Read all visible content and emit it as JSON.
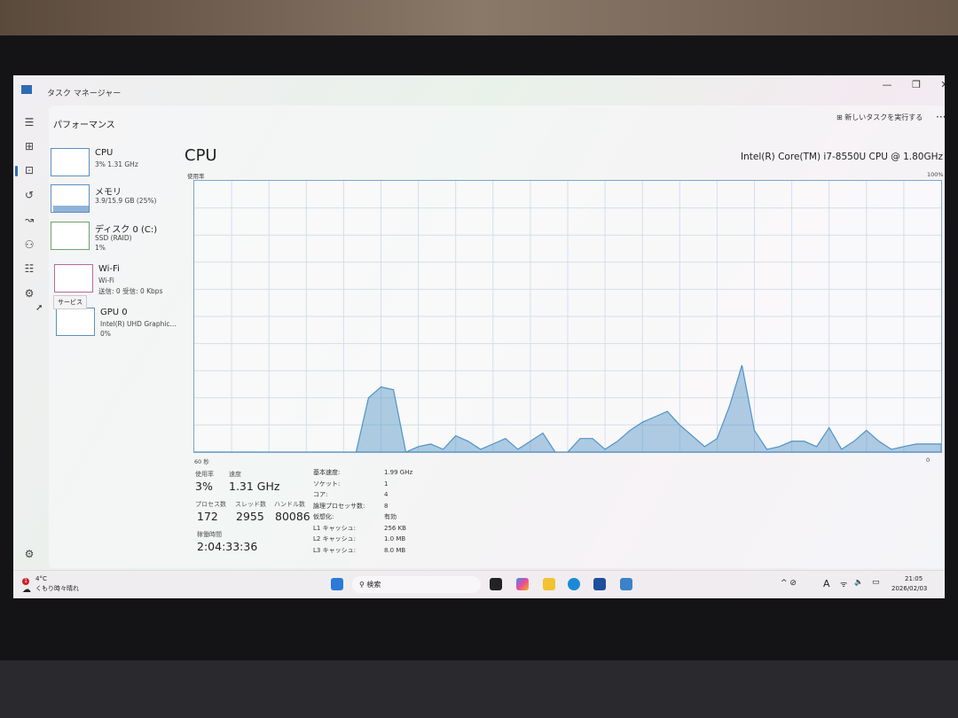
{
  "window": {
    "title": "タスク マネージャー",
    "minimize": "—",
    "restore": "❐",
    "close": "✕"
  },
  "rail": [
    {
      "icon": "hamburger-icon",
      "glyph": "☰"
    },
    {
      "icon": "processes-icon",
      "glyph": "⊞"
    },
    {
      "icon": "performance-icon",
      "glyph": "⊡"
    },
    {
      "icon": "app-history-icon",
      "glyph": "↺"
    },
    {
      "icon": "startup-apps-icon",
      "glyph": "↝"
    },
    {
      "icon": "users-icon",
      "glyph": "⚇"
    },
    {
      "icon": "details-icon",
      "glyph": "☷"
    },
    {
      "icon": "services-icon",
      "glyph": "⚙"
    }
  ],
  "settings_glyph": "⚙",
  "tooltip": "サービス",
  "header": {
    "title": "パフォーマンス",
    "new_task": "新しいタスクを実行する",
    "more": "···"
  },
  "devices": [
    {
      "name": "CPU",
      "line1": "3% 1.31 GHz",
      "line2": ""
    },
    {
      "name": "メモリ",
      "line1": "3.9/15.9 GB (25%)",
      "line2": "",
      "fill": 0.25
    },
    {
      "name": "ディスク 0 (C:)",
      "line1": "SSD (RAID)",
      "line2": "1%"
    },
    {
      "name": "Wi-Fi",
      "line1": "Wi-Fi",
      "line2": "送信: 0 受信: 0 Kbps"
    },
    {
      "name": "GPU 0",
      "line1": "Intel(R) UHD Graphic...",
      "line2": "0%"
    }
  ],
  "main": {
    "title": "CPU",
    "model": "Intel(R) Core(TM) i7-8550U CPU @ 1.80GHz",
    "y_label": "使用率",
    "y_max": "100%",
    "x_left": "60 秒",
    "x_right": "0"
  },
  "stats": {
    "usage_label": "使用率",
    "usage": "3%",
    "speed_label": "速度",
    "speed": "1.31 GHz",
    "processes_label": "プロセス数",
    "processes": "172",
    "threads_label": "スレッド数",
    "threads": "2955",
    "handles_label": "ハンドル数",
    "handles": "80086",
    "uptime_label": "稼働時間",
    "uptime": "2:04:33:36",
    "details": [
      [
        "基本速度:",
        "1.99 GHz"
      ],
      [
        "ソケット:",
        "1"
      ],
      [
        "コア:",
        "4"
      ],
      [
        "論理プロセッサ数:",
        "8"
      ],
      [
        "仮想化:",
        "有効"
      ],
      [
        "L1 キャッシュ:",
        "256 KB"
      ],
      [
        "L2 キャッシュ:",
        "1.0 MB"
      ],
      [
        "L3 キャッシュ:",
        "8.0 MB"
      ]
    ]
  },
  "chart_data": {
    "type": "area",
    "xlabel": "60 秒",
    "ylabel": "使用率",
    "xlim": [
      60,
      0
    ],
    "ylim": [
      0,
      100
    ],
    "grid": true,
    "color": "#4f93c6",
    "x_seconds_ago": [
      60,
      59,
      58,
      57,
      56,
      55,
      54,
      53,
      52,
      51,
      50,
      49,
      48,
      47,
      46,
      45,
      44,
      43,
      42,
      41,
      40,
      39,
      38,
      37,
      36,
      35,
      34,
      33,
      32,
      31,
      30,
      29,
      28,
      27,
      26,
      25,
      24,
      23,
      22,
      21,
      20,
      19,
      18,
      17,
      16,
      15,
      14,
      13,
      12,
      11,
      10,
      9,
      8,
      7,
      6,
      5,
      4,
      3,
      2,
      1,
      0
    ],
    "values": [
      0,
      0,
      0,
      0,
      0,
      0,
      0,
      0,
      0,
      0,
      0,
      0,
      0,
      0,
      20,
      24,
      23,
      0,
      2,
      3,
      1,
      6,
      4,
      1,
      3,
      5,
      1,
      4,
      7,
      0,
      0,
      5,
      5,
      1,
      4,
      8,
      11,
      13,
      15,
      10,
      6,
      2,
      5,
      17,
      32,
      8,
      1,
      2,
      4,
      4,
      2,
      9,
      1,
      4,
      8,
      4,
      1,
      2,
      3,
      3,
      3
    ]
  },
  "taskbar": {
    "weather_temp": "4°C",
    "weather_text": "くもり時々晴れ",
    "weather_badge": "1",
    "search": "検索",
    "time": "21:05",
    "date": "2026/02/03",
    "ime": "A",
    "tray": "^  ⊘",
    "wifi": "ᯤ",
    "volume": "🔈",
    "battery": "▭"
  }
}
